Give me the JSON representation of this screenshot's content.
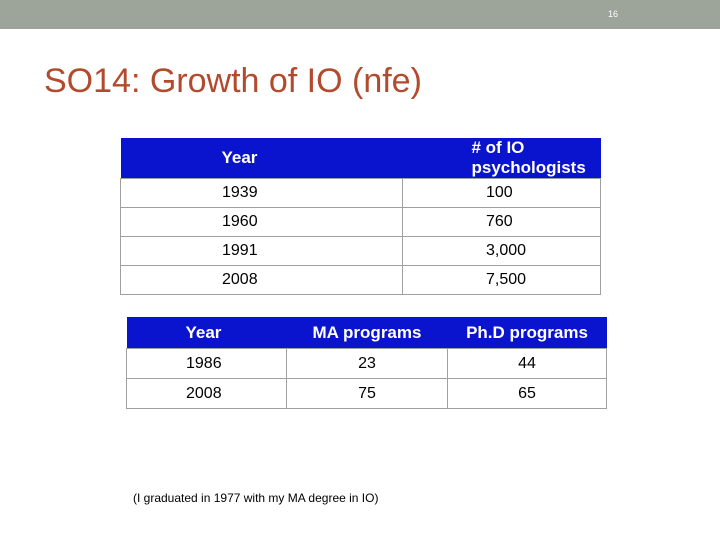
{
  "slide": {
    "number": "16",
    "title": "SO14: Growth of IO (nfe)"
  },
  "table1": {
    "headers": [
      "Year",
      "# of IO psychologists"
    ],
    "rows": [
      [
        "1939",
        "100"
      ],
      [
        "1960",
        "760"
      ],
      [
        "1991",
        "3,000"
      ],
      [
        "2008",
        "7,500"
      ]
    ]
  },
  "table2": {
    "headers": [
      "Year",
      "MA programs",
      "Ph.D programs"
    ],
    "rows": [
      [
        "1986",
        "23",
        "44"
      ],
      [
        "2008",
        "75",
        "65"
      ]
    ]
  },
  "note": "(I graduated in 1977 with my MA degree in IO)",
  "colors": {
    "topbar": "#9da59b",
    "title": "#b24a2e",
    "header_bg": "#0a14cf"
  }
}
